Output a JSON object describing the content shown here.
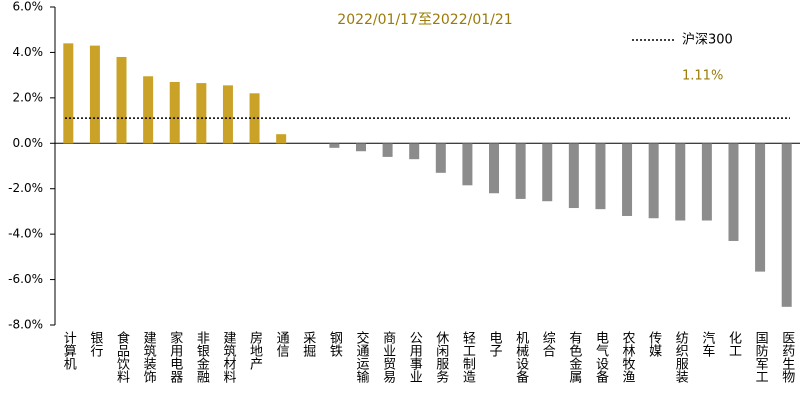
{
  "chart_data": {
    "type": "bar",
    "title": "2022/01/17至2022/01/21",
    "categories": [
      "计算机",
      "银行",
      "食品饮料",
      "建筑装饰",
      "家用电器",
      "非银金融",
      "建筑材料",
      "房地产",
      "通信",
      "采掘",
      "钢铁",
      "交通运输",
      "商业贸易",
      "公用事业",
      "休闲服务",
      "轻工制造",
      "电子",
      "机械设备",
      "综合",
      "有色金属",
      "电气设备",
      "农林牧渔",
      "传媒",
      "纺织服装",
      "汽车",
      "化工",
      "国防军工",
      "医药生物"
    ],
    "values": [
      4.4,
      4.3,
      3.8,
      2.95,
      2.7,
      2.65,
      2.55,
      2.2,
      0.4,
      0,
      -0.2,
      -0.35,
      -0.6,
      -0.7,
      -1.3,
      -1.85,
      -2.2,
      -2.45,
      -2.55,
      -2.85,
      -2.9,
      -3.2,
      -3.3,
      -3.4,
      -3.4,
      -4.3,
      -5.65,
      -7.2
    ],
    "positive_color": "#c9a227",
    "negative_color": "#8c8c8c",
    "ylim": [
      -8,
      6
    ],
    "yticks": [
      {
        "value": -8,
        "label": "-8.0%"
      },
      {
        "value": -6,
        "label": "-6.0%"
      },
      {
        "value": -4,
        "label": "-4.0%"
      },
      {
        "value": -2,
        "label": "-2.0%"
      },
      {
        "value": 0,
        "label": "0.0%"
      },
      {
        "value": 2,
        "label": "2.0%"
      },
      {
        "value": 4,
        "label": "4.0%"
      },
      {
        "value": 6,
        "label": "6.0%"
      }
    ],
    "reference": {
      "name": "沪深300",
      "value": 1.11,
      "value_label": "1.11%",
      "color": "#000000"
    }
  }
}
